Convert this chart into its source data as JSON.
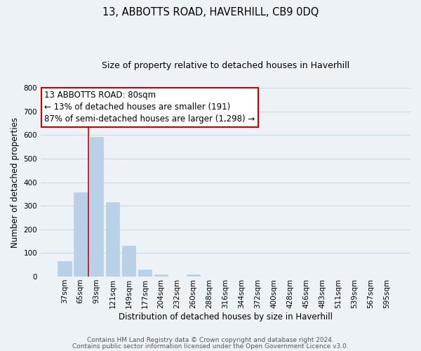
{
  "title": "13, ABBOTTS ROAD, HAVERHILL, CB9 0DQ",
  "subtitle": "Size of property relative to detached houses in Haverhill",
  "xlabel": "Distribution of detached houses by size in Haverhill",
  "ylabel": "Number of detached properties",
  "bar_labels": [
    "37sqm",
    "65sqm",
    "93sqm",
    "121sqm",
    "149sqm",
    "177sqm",
    "204sqm",
    "232sqm",
    "260sqm",
    "288sqm",
    "316sqm",
    "344sqm",
    "372sqm",
    "400sqm",
    "428sqm",
    "456sqm",
    "483sqm",
    "511sqm",
    "539sqm",
    "567sqm",
    "595sqm"
  ],
  "bar_heights": [
    65,
    358,
    592,
    317,
    130,
    30,
    10,
    0,
    10,
    0,
    0,
    0,
    0,
    0,
    0,
    0,
    0,
    0,
    0,
    0,
    0
  ],
  "bar_color": "#b8d0e8",
  "bar_edge_color": "#b8d0e8",
  "vline_x": 1.5,
  "vline_color": "#cc0000",
  "ylim": [
    0,
    800
  ],
  "yticks": [
    0,
    100,
    200,
    300,
    400,
    500,
    600,
    700,
    800
  ],
  "annotation_line1": "13 ABBOTTS ROAD: 80sqm",
  "annotation_line2": "← 13% of detached houses are smaller (191)",
  "annotation_line3": "87% of semi-detached houses are larger (1,298) →",
  "footer_line1": "Contains HM Land Registry data © Crown copyright and database right 2024.",
  "footer_line2": "Contains public sector information licensed under the Open Government Licence v3.0.",
  "grid_color": "#ccd8e4",
  "background_color": "#edf2f7",
  "title_fontsize": 10.5,
  "subtitle_fontsize": 9,
  "annotation_fontsize": 8.5,
  "axis_label_fontsize": 8.5,
  "tick_fontsize": 7.5,
  "footer_fontsize": 6.5
}
